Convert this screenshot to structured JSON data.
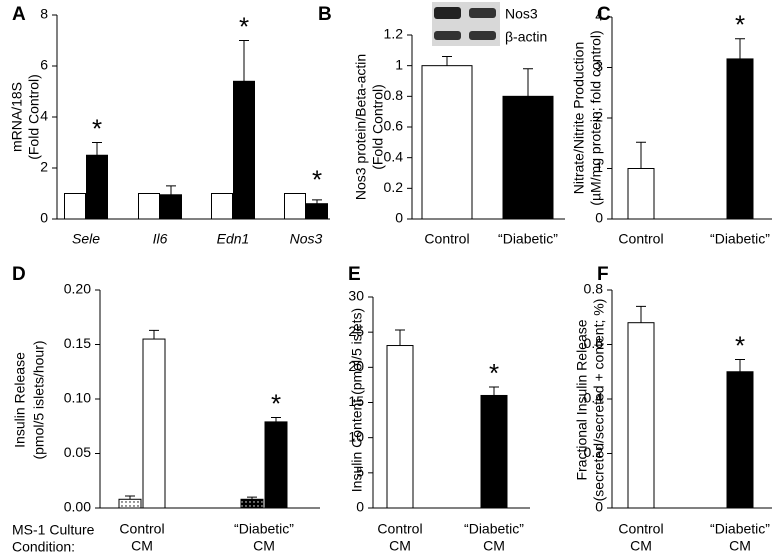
{
  "chart_data": [
    {
      "type": "bar",
      "panel": "A",
      "ylabel": [
        "mRNA/18S",
        "(Fold Control)"
      ],
      "categories": [
        "Sele",
        "Il6",
        "Edn1",
        "Nos3"
      ],
      "italic_categories": true,
      "series": [
        {
          "color": "#ffffff",
          "values": [
            1,
            1,
            1,
            1
          ],
          "errors": [
            0,
            0,
            0,
            0
          ]
        },
        {
          "color": "#000000",
          "values": [
            2.5,
            0.95,
            5.4,
            0.6
          ],
          "errors": [
            0.5,
            0.35,
            1.6,
            0.15
          ]
        }
      ],
      "ylim": [
        0,
        8
      ],
      "yticks": [
        0,
        2,
        4,
        6,
        8
      ],
      "annotations": [
        {
          "text": "*",
          "category": "Sele"
        },
        {
          "text": "*",
          "category": "Edn1"
        },
        {
          "text": "*",
          "category": "Nos3"
        }
      ]
    },
    {
      "type": "bar",
      "panel": "B",
      "ylabel": [
        "Nos3 protein/Beta-actin",
        "(Fold Control)"
      ],
      "categories": [
        [
          "Control"
        ],
        [
          "“Diabetic”"
        ]
      ],
      "series": [
        {
          "colors": [
            "#ffffff",
            "#000000"
          ],
          "values": [
            1.0,
            0.8
          ],
          "errors": [
            0.06,
            0.18
          ]
        }
      ],
      "ylim": [
        0,
        1.2
      ],
      "yticks": [
        0,
        0.2,
        0.4,
        0.6,
        0.8,
        1,
        1.2
      ],
      "blot_labels": [
        "Nos3",
        "β-actin"
      ]
    },
    {
      "type": "bar",
      "panel": "C",
      "ylabel": [
        "Nitrate/Nitrite Production",
        "(µM/mg protein; fold control)"
      ],
      "categories": [
        [
          "Control"
        ],
        [
          "“Diabetic”"
        ]
      ],
      "series": [
        {
          "colors": [
            "#ffffff",
            "#000000"
          ],
          "values": [
            1.0,
            3.17
          ],
          "errors": [
            0.52,
            0.4
          ]
        }
      ],
      "ylim": [
        0,
        4
      ],
      "yticks": [
        0,
        1,
        2,
        3,
        4
      ],
      "annotations": [
        {
          "text": "*",
          "category": 1
        }
      ]
    },
    {
      "type": "bar",
      "panel": "D",
      "ylabel": [
        "Insulin Release",
        "(pmol/5 islets/hour)"
      ],
      "categories": [
        [
          "Control",
          "CM"
        ],
        [
          "“Diabetic”",
          "CM"
        ]
      ],
      "condition_label": [
        "MS-1 Culture",
        "Condition:"
      ],
      "series": [
        {
          "colors": [
            "#ffffff",
            "#000000"
          ],
          "pattern": "dots",
          "values": [
            0.008,
            0.008
          ],
          "errors": [
            0.003,
            0.002
          ]
        },
        {
          "colors": [
            "#ffffff",
            "#000000"
          ],
          "values": [
            0.155,
            0.079
          ],
          "errors": [
            0.008,
            0.004
          ]
        }
      ],
      "ylim": [
        0,
        0.2
      ],
      "yticks": [
        {
          "value": 0,
          "label": "0.00"
        },
        {
          "value": 0.05,
          "label": "0.05"
        },
        {
          "value": 0.1,
          "label": "0.10"
        },
        {
          "value": 0.15,
          "label": "0.15"
        },
        {
          "value": 0.2,
          "label": "0.20"
        }
      ],
      "annotations": [
        {
          "text": "*",
          "category": 1
        }
      ]
    },
    {
      "type": "bar",
      "panel": "E",
      "ylabel": [
        "Insulin Content (pmol/5 islets)"
      ],
      "categories": [
        [
          "Control",
          "CM"
        ],
        [
          "“Diabetic”",
          "CM"
        ]
      ],
      "series": [
        {
          "colors": [
            "#ffffff",
            "#000000"
          ],
          "values": [
            23.1,
            16.0
          ],
          "errors": [
            2.2,
            1.2
          ]
        }
      ],
      "ylim": [
        0,
        30
      ],
      "yticks": [
        0,
        5,
        10,
        15,
        20,
        25,
        30
      ],
      "annotations": [
        {
          "text": "*",
          "category": 1
        }
      ]
    },
    {
      "type": "bar",
      "panel": "F",
      "ylabel": [
        "Fractional Insulin Release",
        "(secreted/secreted + content; %)"
      ],
      "categories": [
        [
          "Control",
          "CM"
        ],
        [
          "“Diabetic”",
          "CM"
        ]
      ],
      "series": [
        {
          "colors": [
            "#ffffff",
            "#000000"
          ],
          "values": [
            0.68,
            0.5
          ],
          "errors": [
            0.06,
            0.045
          ]
        }
      ],
      "ylim": [
        0,
        0.8
      ],
      "yticks": [
        0,
        0.2,
        0.4,
        0.6,
        0.8
      ],
      "annotations": [
        {
          "text": "*",
          "category": 1
        }
      ]
    }
  ]
}
